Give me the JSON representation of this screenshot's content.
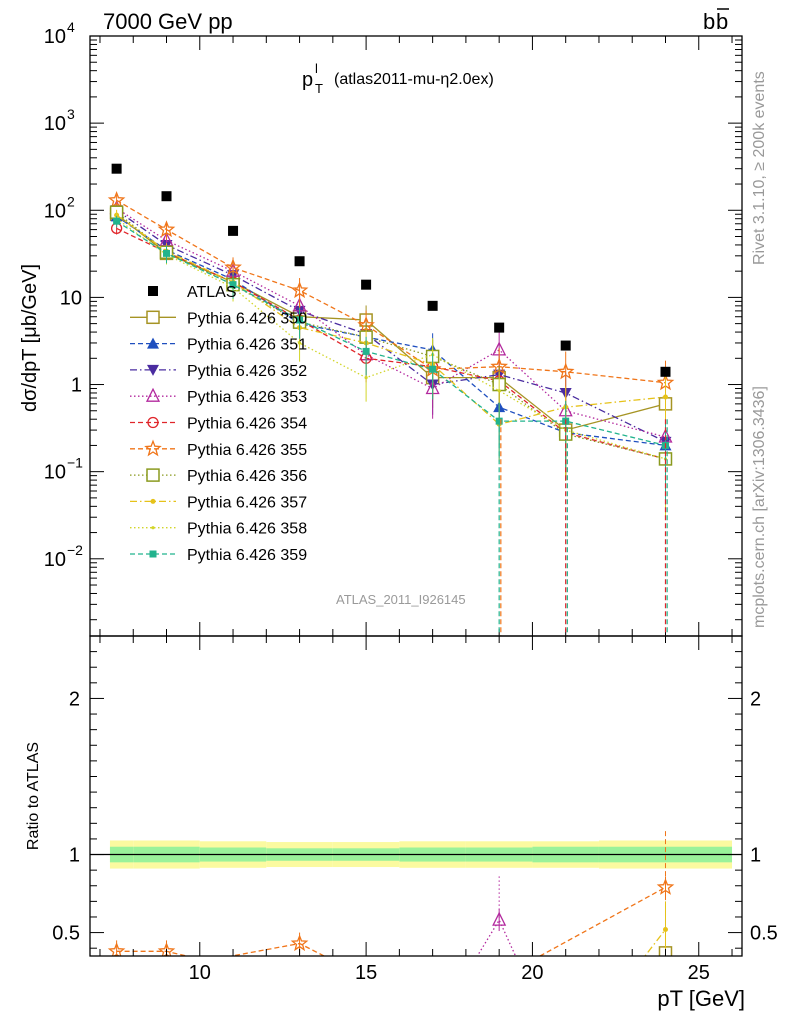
{
  "header": {
    "left": "7000 GeV pp",
    "right_main": "b",
    "right_bar": "b"
  },
  "side_labels": {
    "rivet": "Rivet 3.1.10, ≥ 200k events",
    "mcplots": "mcplots.cern.ch [arXiv:1306.3436]"
  },
  "chart_data": {
    "type": "scatter",
    "title_main": "p",
    "title_sup": "l",
    "title_sub": "T",
    "title_note": "(atlas2011-mu-η2.0ex)",
    "watermark": "ATLAS_2011_I926145",
    "ylabel": "dσ/dp_T [μb/GeV]",
    "xlabel": "p_T [GeV]",
    "xlim": [
      6.7,
      26.3
    ],
    "ylim": [
      0.0013,
      10000
    ],
    "xticks": [
      10,
      15,
      20,
      25
    ],
    "xtick_labels": [
      "10",
      "15",
      "20",
      "25"
    ],
    "yticks_upper": [
      {
        "v": 10000,
        "base": "10",
        "exp": "4"
      },
      {
        "v": 1000,
        "base": "10",
        "exp": "3"
      },
      {
        "v": 100,
        "base": "10",
        "exp": "2"
      },
      {
        "v": 10,
        "base": "10",
        "exp": ""
      },
      {
        "v": 1,
        "base": "1",
        "exp": ""
      },
      {
        "v": 0.1,
        "base": "10",
        "exp": "−1"
      },
      {
        "v": 0.01,
        "base": "10",
        "exp": "−2"
      }
    ],
    "x": [
      7.5,
      9,
      11,
      13,
      15,
      17,
      19,
      21,
      24
    ],
    "bin_edges": [
      7,
      8,
      10,
      12,
      14,
      16,
      18,
      20,
      22,
      26
    ],
    "data": {
      "name": "ATLAS",
      "color": "#000000",
      "values": [
        300,
        145,
        58,
        26,
        14,
        8,
        4.5,
        2.8,
        1.4
      ]
    },
    "series": [
      {
        "name": "Pythia 6.426 350",
        "color": "#a69424",
        "marker": "square-open",
        "dash": "solid",
        "values": [
          90,
          32,
          15,
          6,
          5.5,
          1.2,
          1.2,
          0.3,
          0.6
        ]
      },
      {
        "name": "Pythia 6.426 351",
        "color": "#1f4fbf",
        "marker": "triangle-up",
        "dash": "dashed",
        "values": [
          85,
          35,
          16,
          5,
          3.5,
          2.5,
          0.55,
          0.28,
          0.2
        ]
      },
      {
        "name": "Pythia 6.426 352",
        "color": "#4a2ca0",
        "marker": "triangle-down",
        "dash": "dashdot",
        "values": [
          100,
          40,
          18,
          7,
          3.8,
          1.0,
          1.3,
          0.8,
          0.22
        ]
      },
      {
        "name": "Pythia 6.426 353",
        "color": "#b3299e",
        "marker": "triangle-up-open",
        "dash": "dotted",
        "values": [
          105,
          45,
          20,
          8,
          2.2,
          0.9,
          2.5,
          0.5,
          0.25
        ]
      },
      {
        "name": "Pythia 6.426 354",
        "color": "#e0252a",
        "marker": "circle-open",
        "dash": "dashed",
        "values": [
          62,
          33,
          15,
          5.5,
          2.0,
          1.6,
          1.1,
          0.28,
          0.14
        ]
      },
      {
        "name": "Pythia 6.426 355",
        "color": "#f07519",
        "marker": "star-open",
        "dash": "dashed",
        "values": [
          130,
          60,
          22,
          12,
          4.8,
          1.5,
          1.6,
          1.4,
          1.05
        ]
      },
      {
        "name": "Pythia 6.426 356",
        "color": "#8a9a1f",
        "marker": "square-open",
        "dash": "dotted",
        "values": [
          95,
          33,
          14,
          5.2,
          3.5,
          2.1,
          1.0,
          0.27,
          0.14
        ]
      },
      {
        "name": "Pythia 6.426 357",
        "color": "#e6c21a",
        "marker": "dot",
        "dash": "dashdot",
        "values": [
          88,
          34,
          15,
          4.5,
          3.0,
          1.7,
          0.35,
          0.55,
          0.72
        ]
      },
      {
        "name": "Pythia 6.426 358",
        "color": "#d2d52a",
        "marker": "dot-small",
        "dash": "dotted",
        "values": [
          80,
          31,
          13,
          3.0,
          1.2,
          2.2,
          0.85,
          0.3,
          0.14
        ]
      },
      {
        "name": "Pythia 6.426 359",
        "color": "#22b38d",
        "marker": "square-filled",
        "dash": "dashed",
        "values": [
          75,
          32,
          14,
          5.5,
          2.4,
          1.5,
          0.38,
          0.38,
          0.2
        ]
      }
    ],
    "ratio": {
      "ylabel": "Ratio to ATLAS",
      "ylim": [
        0.35,
        2.4
      ],
      "yticks": [
        {
          "v": 0.5,
          "label": "0.5"
        },
        {
          "v": 1,
          "label": "1"
        },
        {
          "v": 2,
          "label": "2"
        }
      ],
      "band_inner": [
        0.05,
        0.05,
        0.045,
        0.04,
        0.04,
        0.045,
        0.045,
        0.05,
        0.05
      ],
      "band_outer": [
        0.09,
        0.09,
        0.085,
        0.08,
        0.08,
        0.085,
        0.085,
        0.085,
        0.09
      ],
      "visible_series": [
        {
          "name": "Pythia 6.426 355",
          "color": "#f07519",
          "marker": "star-open",
          "points": [
            [
              7.5,
              0.38
            ],
            [
              9,
              0.38
            ],
            [
              10.2,
              0.32
            ],
            [
              13,
              0.43
            ],
            [
              14.2,
              0.3
            ]
          ]
        },
        {
          "name": "Pythia 6.426 355 tail",
          "color": "#f07519",
          "marker": "star-open",
          "points": [
            [
              19.8,
              0.3
            ],
            [
              24,
              0.79
            ]
          ]
        },
        {
          "name": "Pythia 6.426 353",
          "color": "#b3299e",
          "marker": "triangle-up-open",
          "points": [
            [
              18.2,
              0.3
            ],
            [
              19,
              0.58
            ],
            [
              19.6,
              0.3
            ]
          ]
        },
        {
          "name": "Pythia 6.426 357",
          "color": "#e6c21a",
          "marker": "dot",
          "points": [
            [
              23.2,
              0.3
            ],
            [
              24,
              0.52
            ]
          ]
        },
        {
          "name": "Pythia 6.426 350",
          "color": "#a69424",
          "marker": "square-open",
          "points": [
            [
              24,
              0.37
            ]
          ]
        }
      ]
    }
  }
}
